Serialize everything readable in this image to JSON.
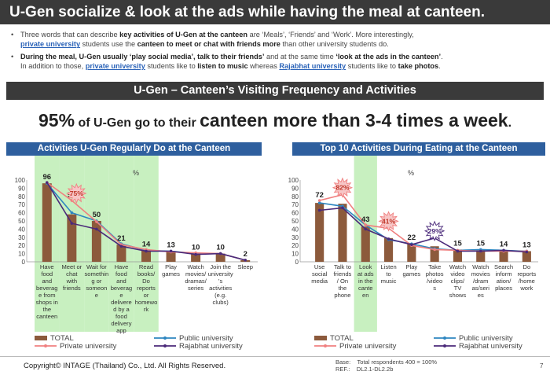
{
  "header": {
    "title": "U-Gen socialize & look at the ads while having the meal at canteen."
  },
  "bullets": [
    {
      "t1": "Three words that can describe ",
      "e1": "key activities of U-Gen at the canteen",
      "t2": " are ‘Meals’, ‘Friends’ and ‘Work’. More interestingly,",
      "h1": "private university",
      "t3": " students use the ",
      "e2": "canteen to meet or chat with friends more",
      "t4": " than other university students do."
    },
    {
      "e1": "During the meal, U-Gen usually ‘play social media’, talk to their friends’",
      "t1": " and at the same time ",
      "e2": "‘look at the ads in the canteen’",
      "t2": ".",
      "t3": "In addition to those, ",
      "h1": "private university",
      "t4": " students like to ",
      "e3": "listen to music",
      "t5": " whereas ",
      "h2": "Rajabhat university",
      "t6": " students like to ",
      "e4": "take photos",
      "t7": "."
    }
  ],
  "section": {
    "title": "U-Gen – Canteen’s Visiting Frequency and Activities"
  },
  "headline": {
    "pct": "95%",
    "p1": " of U-Gen go to their ",
    "p2": "canteen more than 3-4 times a week",
    "p3": "."
  },
  "footer": {
    "copyright": "Copyright© INTAGE (Thailand) Co., Ltd. All Rights Reserved.",
    "base_label": "Base:",
    "base_value": "Total respondents 400 = 100%",
    "ref_label": "REF.:",
    "ref_value": "DL2.1-DL2.2b",
    "page": "7"
  },
  "colors": {
    "total": "#8c5a3c",
    "public": "#2e86c1",
    "private": "#f08080",
    "rajabhat": "#4b2a7a",
    "highlight": "#c8f0c0",
    "bar_header": "#2e5f9e"
  },
  "chart_data": [
    {
      "type": "bar",
      "title": "Activities U-Gen Regularly Do at the Canteen",
      "unit_label": "%",
      "ylim": [
        0,
        100
      ],
      "yticks": [
        "0",
        "10",
        "20",
        "30",
        "40",
        "50",
        "60",
        "70",
        "80",
        "90",
        "100"
      ],
      "categories": [
        [
          "Have",
          "food",
          "and",
          "beverag",
          "e from",
          "shops in",
          "the",
          "canteen"
        ],
        [
          "Meet or",
          "chat",
          "with",
          "friends"
        ],
        [
          "Wait for",
          "somethin",
          "g or",
          "someon",
          "e"
        ],
        [
          "Have",
          "food",
          "and",
          "beverag",
          "e",
          "delivere",
          "d by a",
          "food",
          "delivery",
          "app"
        ],
        [
          "Read",
          "books/",
          "Do",
          "reports",
          "or",
          "homewo",
          "rk"
        ],
        [
          "Play",
          "games"
        ],
        [
          "Watch",
          "movies/",
          "dramas/",
          "series"
        ],
        [
          "Join the",
          "university",
          "'s",
          "activities",
          "(e.g.",
          "clubs)"
        ],
        [
          "Sleep"
        ]
      ],
      "highlighted_categories": [
        0,
        1,
        2,
        3,
        4
      ],
      "series": [
        {
          "name": "TOTAL",
          "kind": "bar",
          "values": [
            96,
            58,
            50,
            21,
            14,
            13,
            10,
            10,
            2
          ],
          "labels": [
            "96",
            "58",
            "50",
            "21",
            "14",
            "13",
            "10",
            "10",
            "2"
          ]
        },
        {
          "name": "Public university",
          "kind": "line",
          "values": [
            96,
            60,
            50,
            22,
            14,
            13,
            10,
            10,
            2
          ]
        },
        {
          "name": "Private university",
          "kind": "line",
          "values": [
            97,
            75,
            49,
            21,
            15,
            12,
            11,
            10,
            2
          ]
        },
        {
          "name": "Rajabhat university",
          "kind": "line",
          "values": [
            97,
            47,
            40,
            19,
            13,
            13,
            9,
            10,
            2
          ]
        }
      ],
      "callouts": [
        {
          "index": 1,
          "series": "Private university",
          "label": "75%"
        }
      ],
      "legend": [
        "TOTAL",
        "Public university",
        "Private university",
        "Rajabhat university"
      ],
      "legend_placement": "bottom"
    },
    {
      "type": "bar",
      "title": "Top 10 Activities During Eating at the Canteen",
      "unit_label": "%",
      "ylim": [
        0,
        100
      ],
      "yticks": [
        "0",
        "10",
        "20",
        "30",
        "40",
        "50",
        "60",
        "70",
        "80",
        "90",
        "100"
      ],
      "categories": [
        [
          "Use",
          "social",
          "media"
        ],
        [
          "Talk to",
          "friends",
          "/ On",
          "the",
          "phone"
        ],
        [
          "Look",
          "at ads",
          "in the",
          "cante",
          "en"
        ],
        [
          "Listen",
          "to",
          "music"
        ],
        [
          "Play",
          "games"
        ],
        [
          "Take",
          "photos",
          "/video",
          "s"
        ],
        [
          "Watch",
          "video",
          "clips/",
          "TV",
          "shows"
        ],
        [
          "Watch",
          "movies",
          "/dram",
          "as/seri",
          "es"
        ],
        [
          "Search",
          "inform",
          "ation/",
          "places"
        ],
        [
          "Do",
          "reports",
          "/home",
          "work"
        ]
      ],
      "highlighted_categories": [
        2
      ],
      "series": [
        {
          "name": "TOTAL",
          "kind": "bar",
          "values": [
            72,
            71,
            43,
            29,
            22,
            19,
            15,
            15,
            14,
            13
          ],
          "labels": [
            "72",
            "71",
            "43",
            "29",
            "22",
            "19",
            "15",
            "15",
            "14",
            "13"
          ]
        },
        {
          "name": "Public university",
          "kind": "line",
          "values": [
            72,
            68,
            45,
            27,
            22,
            16,
            14,
            15,
            14,
            13
          ]
        },
        {
          "name": "Private university",
          "kind": "line",
          "values": [
            75,
            82,
            45,
            41,
            20,
            15,
            14,
            13,
            13,
            13
          ]
        },
        {
          "name": "Rajabhat university",
          "kind": "line",
          "values": [
            63,
            66,
            40,
            28,
            21,
            29,
            13,
            13,
            14,
            12
          ]
        }
      ],
      "callouts": [
        {
          "index": 1,
          "series": "Private university",
          "label": "82%"
        },
        {
          "index": 3,
          "series": "Private university",
          "label": "41%"
        },
        {
          "index": 5,
          "series": "Rajabhat university",
          "label": "29%"
        }
      ],
      "legend": [
        "TOTAL",
        "Public university",
        "Private university",
        "Rajabhat university"
      ],
      "legend_placement": "bottom"
    }
  ]
}
